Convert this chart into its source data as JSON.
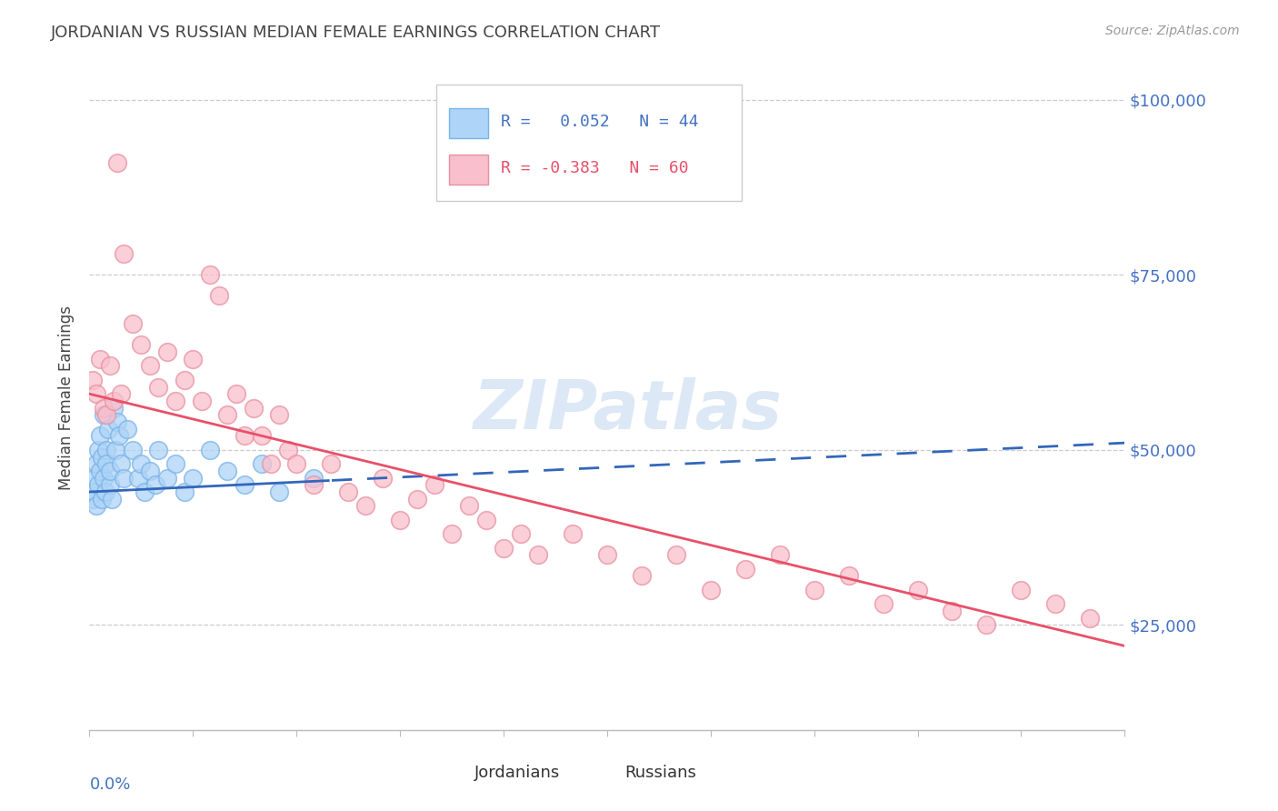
{
  "title": "JORDANIAN VS RUSSIAN MEDIAN FEMALE EARNINGS CORRELATION CHART",
  "source": "Source: ZipAtlas.com",
  "ylabel": "Median Female Earnings",
  "x_min": 0.0,
  "x_max": 0.6,
  "y_min": 10000,
  "y_max": 105000,
  "y_ticks": [
    25000,
    50000,
    75000,
    100000
  ],
  "y_tick_labels": [
    "$25,000",
    "$50,000",
    "$75,000",
    "$100,000"
  ],
  "background_color": "#ffffff",
  "title_color": "#444444",
  "ylabel_color": "#444444",
  "source_color": "#999999",
  "watermark_text": "ZIPatlas",
  "watermark_color": "#dce8f5",
  "jordanians": {
    "scatter_facecolor": "#aed4f7",
    "scatter_edgecolor": "#7ab3e8",
    "trend_color": "#3366bb",
    "trend_dash": true,
    "R": 0.052,
    "N": 44,
    "label": "Jordanians",
    "x": [
      0.002,
      0.003,
      0.003,
      0.004,
      0.004,
      0.005,
      0.005,
      0.006,
      0.006,
      0.007,
      0.007,
      0.008,
      0.008,
      0.009,
      0.01,
      0.01,
      0.011,
      0.012,
      0.012,
      0.013,
      0.014,
      0.015,
      0.016,
      0.017,
      0.018,
      0.02,
      0.022,
      0.025,
      0.028,
      0.03,
      0.032,
      0.035,
      0.038,
      0.04,
      0.045,
      0.05,
      0.055,
      0.06,
      0.07,
      0.08,
      0.09,
      0.1,
      0.11,
      0.13
    ],
    "y": [
      43000,
      46000,
      44000,
      48000,
      42000,
      50000,
      45000,
      52000,
      47000,
      49000,
      43000,
      55000,
      46000,
      44000,
      50000,
      48000,
      53000,
      45000,
      47000,
      43000,
      56000,
      50000,
      54000,
      52000,
      48000,
      46000,
      53000,
      50000,
      46000,
      48000,
      44000,
      47000,
      45000,
      50000,
      46000,
      48000,
      44000,
      46000,
      50000,
      47000,
      45000,
      48000,
      44000,
      46000
    ]
  },
  "russians": {
    "scatter_facecolor": "#f9bfcc",
    "scatter_edgecolor": "#e890a0",
    "trend_color": "#e8506a",
    "trend_dash": false,
    "R": -0.383,
    "N": 60,
    "label": "Russians",
    "x": [
      0.002,
      0.004,
      0.006,
      0.008,
      0.01,
      0.012,
      0.014,
      0.016,
      0.018,
      0.02,
      0.025,
      0.03,
      0.035,
      0.04,
      0.045,
      0.05,
      0.055,
      0.06,
      0.065,
      0.07,
      0.075,
      0.08,
      0.085,
      0.09,
      0.095,
      0.1,
      0.105,
      0.11,
      0.115,
      0.12,
      0.13,
      0.14,
      0.15,
      0.16,
      0.17,
      0.18,
      0.19,
      0.2,
      0.21,
      0.22,
      0.23,
      0.24,
      0.25,
      0.26,
      0.28,
      0.3,
      0.32,
      0.34,
      0.36,
      0.38,
      0.4,
      0.42,
      0.44,
      0.46,
      0.48,
      0.5,
      0.52,
      0.54,
      0.56,
      0.58
    ],
    "y": [
      60000,
      58000,
      63000,
      56000,
      55000,
      62000,
      57000,
      91000,
      58000,
      78000,
      68000,
      65000,
      62000,
      59000,
      64000,
      57000,
      60000,
      63000,
      57000,
      75000,
      72000,
      55000,
      58000,
      52000,
      56000,
      52000,
      48000,
      55000,
      50000,
      48000,
      45000,
      48000,
      44000,
      42000,
      46000,
      40000,
      43000,
      45000,
      38000,
      42000,
      40000,
      36000,
      38000,
      35000,
      38000,
      35000,
      32000,
      35000,
      30000,
      33000,
      35000,
      30000,
      32000,
      28000,
      30000,
      27000,
      25000,
      30000,
      28000,
      26000
    ]
  },
  "legend": {
    "R_jordanians": " 0.052",
    "N_jordanians": "44",
    "R_russians": "-0.383",
    "N_russians": "60"
  }
}
